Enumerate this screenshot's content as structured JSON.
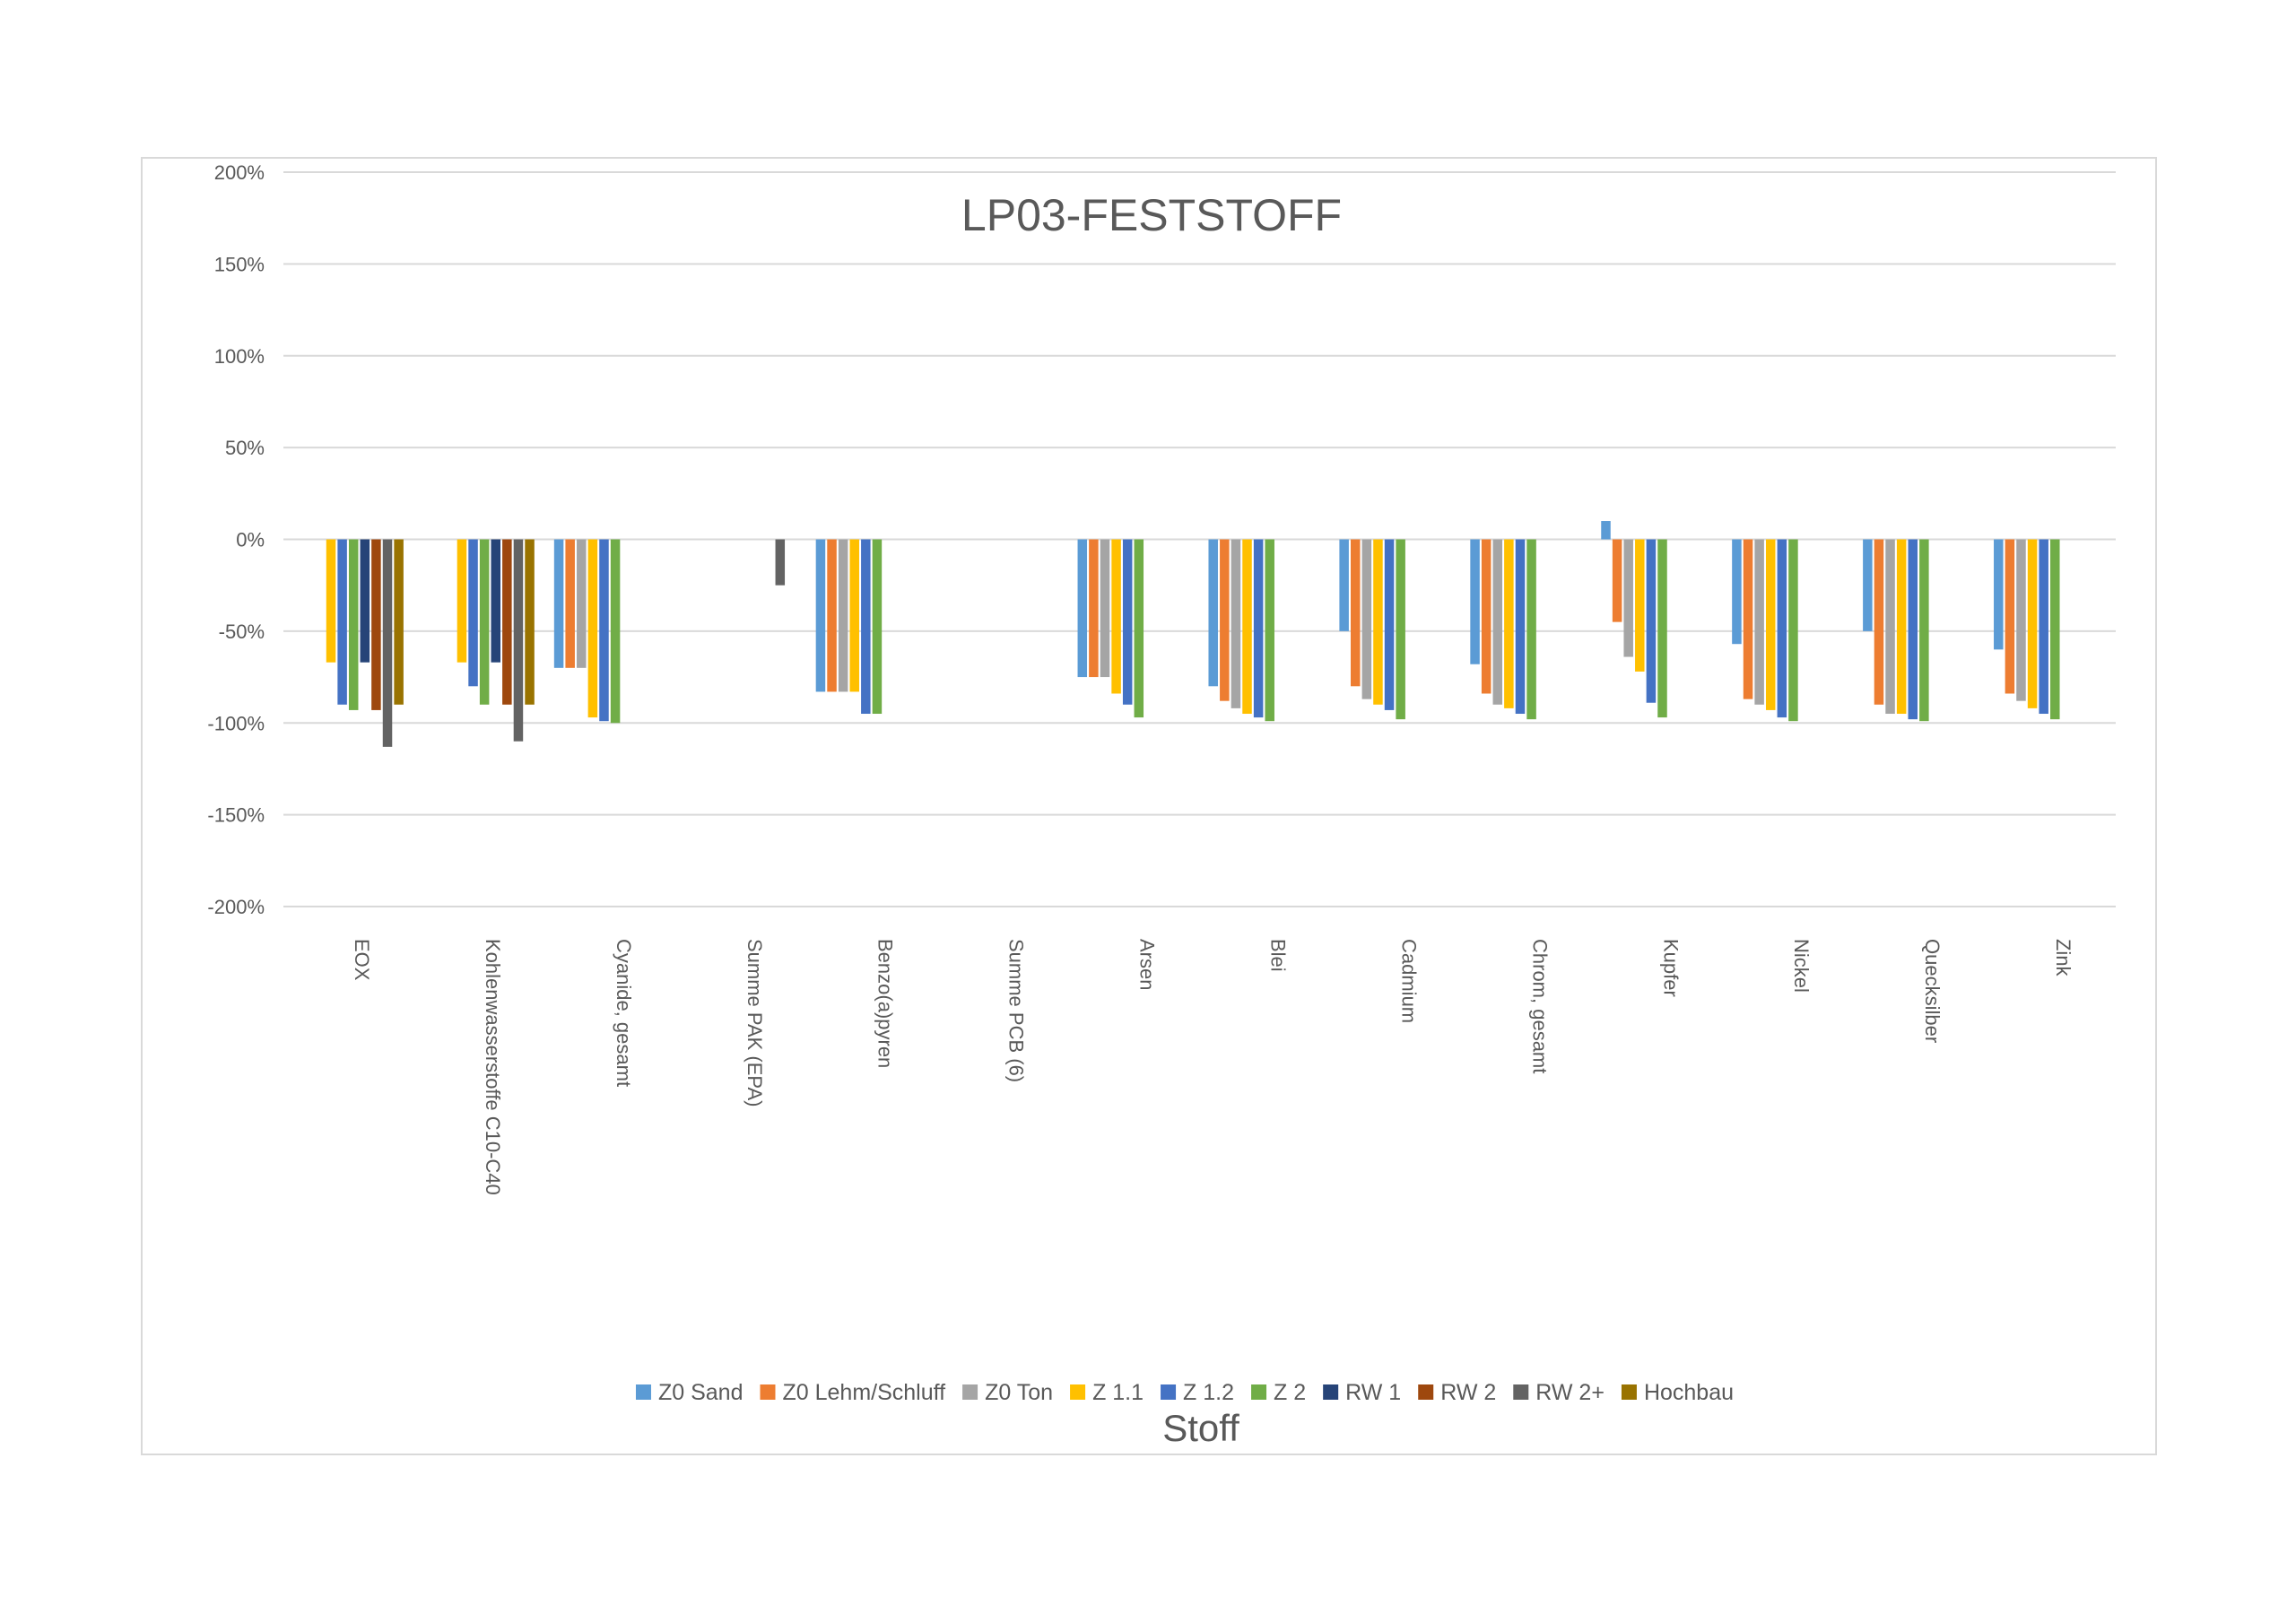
{
  "chart_data": {
    "type": "bar",
    "title": "LP03-FESTSTOFF",
    "xlabel": "Stoff",
    "ylabel": "",
    "ylim": [
      -200,
      200
    ],
    "y_ticks": [
      "200%",
      "150%",
      "100%",
      "50%",
      "0%",
      "-50%",
      "-100%",
      "-150%",
      "-200%"
    ],
    "y_tick_values": [
      200,
      150,
      100,
      50,
      0,
      -50,
      -100,
      -150,
      -200
    ],
    "grid": true,
    "legend_position": "bottom",
    "categories": [
      "EOX",
      "Kohlenwasserstoffe C10-C40",
      "Cyanide, gesamt",
      "Summe PAK (EPA)",
      "Benzo(a)pyren",
      "Summe PCB (6)",
      "Arsen",
      "Blei",
      "Cadmium",
      "Chrom, gesamt",
      "Kupfer",
      "Nickel",
      "Quecksilber",
      "Zink"
    ],
    "series": [
      {
        "name": "Z0 Sand",
        "color": "#5b9bd5",
        "values": [
          null,
          null,
          -70,
          null,
          -83,
          null,
          -75,
          -80,
          -50,
          -68,
          10,
          -57,
          -50,
          -60
        ]
      },
      {
        "name": "Z0 Lehm/Schluff",
        "color": "#ed7d31",
        "values": [
          null,
          null,
          -70,
          null,
          -83,
          null,
          -75,
          -88,
          -80,
          -84,
          -45,
          -87,
          -90,
          -84
        ]
      },
      {
        "name": "Z0 Ton",
        "color": "#a5a5a5",
        "values": [
          null,
          null,
          -70,
          null,
          -83,
          null,
          -75,
          -92,
          -87,
          -90,
          -64,
          -90,
          -95,
          -88
        ]
      },
      {
        "name": "Z 1.1",
        "color": "#ffc000",
        "values": [
          -67,
          -67,
          -97,
          null,
          -83,
          null,
          -84,
          -95,
          -90,
          -92,
          -72,
          -93,
          -95,
          -92
        ]
      },
      {
        "name": "Z 1.2",
        "color": "#4472c4",
        "values": [
          -90,
          -80,
          -99,
          null,
          -95,
          null,
          -90,
          -97,
          -93,
          -95,
          -89,
          -97,
          -98,
          -95
        ]
      },
      {
        "name": "Z 2",
        "color": "#70ad47",
        "values": [
          -93,
          -90,
          -100,
          null,
          -95,
          null,
          -97,
          -99,
          -98,
          -98,
          -97,
          -99,
          -99,
          -98
        ]
      },
      {
        "name": "RW 1",
        "color": "#264478",
        "values": [
          -67,
          -67,
          null,
          null,
          null,
          null,
          null,
          null,
          null,
          null,
          null,
          null,
          null,
          null
        ]
      },
      {
        "name": "RW 2",
        "color": "#9e480e",
        "values": [
          -93,
          -90,
          null,
          null,
          null,
          null,
          null,
          null,
          null,
          null,
          null,
          null,
          null,
          null
        ]
      },
      {
        "name": "RW 2+",
        "color": "#636363",
        "values": [
          -113,
          -110,
          null,
          -25,
          null,
          null,
          null,
          null,
          null,
          null,
          null,
          null,
          null,
          null
        ]
      },
      {
        "name": "Hochbau",
        "color": "#997300",
        "values": [
          -90,
          -90,
          null,
          null,
          null,
          null,
          null,
          null,
          null,
          null,
          null,
          null,
          null,
          null
        ]
      }
    ],
    "gridline_color": "#d9d9d9"
  }
}
